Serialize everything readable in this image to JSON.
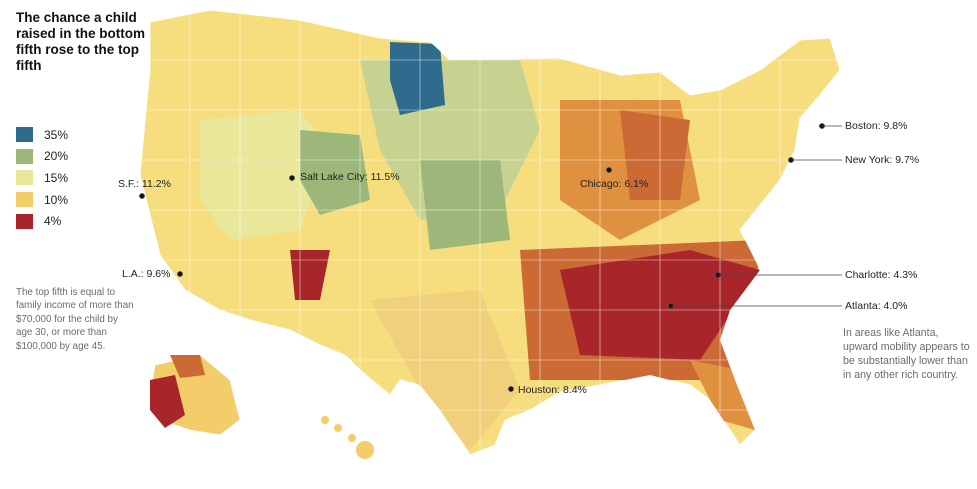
{
  "title": "The chance a child raised in the bottom fifth rose to the top fifth",
  "legend": [
    {
      "label": "35%",
      "color": "#2e6b8c"
    },
    {
      "label": "20%",
      "color": "#9db77a"
    },
    {
      "label": "15%",
      "color": "#e8e79a"
    },
    {
      "label": "10%",
      "color": "#f2cd6a"
    },
    {
      "label": "4%",
      "color": "#a8262a"
    }
  ],
  "note_left": "The top fifth is equal to family income of more than $70,000 for the child by age 30, or more than $100,000 by age 45.",
  "note_right": "In areas like Atlanta, upward mobility appears to be substantially lower than in any other rich country.",
  "cities": [
    {
      "label": "S.F.: 11.2%"
    },
    {
      "label": "L.A.: 9.6%"
    },
    {
      "label": "Salt Lake City: 11.5%"
    },
    {
      "label": "Chicago: 6.1%"
    },
    {
      "label": "Houston: 8.4%"
    },
    {
      "label": "Boston: 9.8%"
    },
    {
      "label": "New York: 9.7%"
    },
    {
      "label": "Charlotte: 4.3%"
    },
    {
      "label": "Atlanta: 4.0%"
    }
  ],
  "colors": {
    "tan": "#f6dd7e",
    "orange": "#e0913f",
    "deep_orange": "#cc6a35",
    "red": "#a8262a",
    "green": "#9db77a",
    "blue": "#2e6b8c",
    "pale": "#ecea9c",
    "county_line": "#ffffff"
  }
}
